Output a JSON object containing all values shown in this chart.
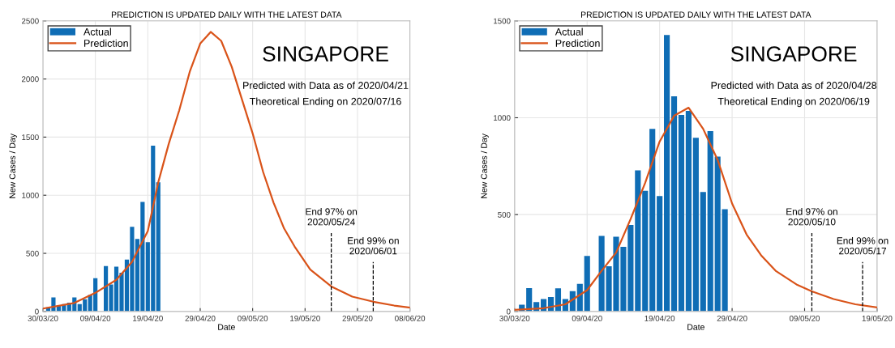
{
  "chart_data": [
    {
      "type": "bar",
      "title": "PREDICTION IS UPDATED DAILY WITH THE LATEST DATA",
      "xlabel": "Date",
      "ylabel": "New Cases / Day",
      "annotations": [
        "SINGAPORE",
        "Predicted with Data as of 2020/04/21",
        "Theoretical Ending on 2020/07/16"
      ],
      "xlim": [
        "2020-03-30",
        "2020-06-08"
      ],
      "xticks": [
        {
          "value": "2020-03-30",
          "label": "30/03/20"
        },
        {
          "value": "2020-04-09",
          "label": "09/04/20"
        },
        {
          "value": "2020-04-19",
          "label": "19/04/20"
        },
        {
          "value": "2020-04-29",
          "label": "29/04/20"
        },
        {
          "value": "2020-05-09",
          "label": "09/05/20"
        },
        {
          "value": "2020-05-19",
          "label": "19/05/20"
        },
        {
          "value": "2020-05-29",
          "label": "29/05/20"
        },
        {
          "value": "2020-06-08",
          "label": "08/06/20"
        }
      ],
      "ylim": [
        0,
        2500
      ],
      "yticks": [
        0,
        500,
        1000,
        1500,
        2000,
        2500
      ],
      "grid": true,
      "legend": "top left",
      "ref_lines": [
        {
          "axis": "x",
          "value": "2020-05-24",
          "label": "End 97% on\n2020/05/24",
          "color": "#000000",
          "line_style": "dashed"
        },
        {
          "axis": "x",
          "value": "2020-06-01",
          "label": "End 99% on\n2020/06/01",
          "color": "#000000",
          "line_style": "dashed"
        }
      ],
      "series": [
        {
          "name": "Actual",
          "color": "#0f6db5",
          "x": [
            "2020-03-31",
            "2020-04-01",
            "2020-04-02",
            "2020-04-03",
            "2020-04-04",
            "2020-04-05",
            "2020-04-06",
            "2020-04-07",
            "2020-04-08",
            "2020-04-09",
            "2020-04-10",
            "2020-04-11",
            "2020-04-12",
            "2020-04-13",
            "2020-04-14",
            "2020-04-15",
            "2020-04-16",
            "2020-04-17",
            "2020-04-18",
            "2020-04-19",
            "2020-04-20",
            "2020-04-21"
          ],
          "values": [
            35,
            121,
            48,
            64,
            75,
            120,
            64,
            105,
            142,
            287,
            null,
            390,
            233,
            386,
            334,
            446,
            728,
            623,
            942,
            596,
            1427,
            1111
          ]
        },
        {
          "name": "Prediction",
          "type": "line",
          "color": "#d95319",
          "x": [
            "2020-03-30",
            "2020-04-05",
            "2020-04-09",
            "2020-04-13",
            "2020-04-16",
            "2020-04-19",
            "2020-04-21",
            "2020-04-23",
            "2020-04-25",
            "2020-04-27",
            "2020-04-29",
            "2020-05-01",
            "2020-05-03",
            "2020-05-05",
            "2020-05-07",
            "2020-05-09",
            "2020-05-11",
            "2020-05-13",
            "2020-05-15",
            "2020-05-17",
            "2020-05-20",
            "2020-05-24",
            "2020-05-28",
            "2020-06-01",
            "2020-06-05",
            "2020-06-08"
          ],
          "values": [
            25,
            73,
            160,
            272,
            427,
            692,
            1112,
            1443,
            1731,
            2062,
            2305,
            2405,
            2328,
            2106,
            1819,
            1532,
            1200,
            935,
            714,
            559,
            360,
            215,
            128,
            84,
            51,
            33
          ]
        }
      ]
    },
    {
      "type": "bar",
      "title": "PREDICTION IS UPDATED DAILY WITH THE LATEST DATA",
      "xlabel": "Date",
      "ylabel": "New Cases / Day",
      "annotations": [
        "SINGAPORE",
        "Predicted with Data as of 2020/04/28",
        "Theoretical Ending on 2020/06/19"
      ],
      "xlim": [
        "2020-03-30",
        "2020-05-19"
      ],
      "xticks": [
        {
          "value": "2020-03-30",
          "label": "30/03/20"
        },
        {
          "value": "2020-04-09",
          "label": "09/04/20"
        },
        {
          "value": "2020-04-19",
          "label": "19/04/20"
        },
        {
          "value": "2020-04-29",
          "label": "29/04/20"
        },
        {
          "value": "2020-05-09",
          "label": "09/05/20"
        },
        {
          "value": "2020-05-19",
          "label": "19/05/20"
        }
      ],
      "ylim": [
        0,
        1500
      ],
      "yticks": [
        0,
        500,
        1000,
        1500
      ],
      "grid": true,
      "legend": "top left",
      "ref_lines": [
        {
          "axis": "x",
          "value": "2020-05-10",
          "label": "End 97% on\n2020/05/10",
          "color": "#000000",
          "line_style": "dashed"
        },
        {
          "axis": "x",
          "value": "2020-05-17",
          "label": "End 99% on\n2020/05/17",
          "color": "#000000",
          "line_style": "dashed"
        }
      ],
      "series": [
        {
          "name": "Actual",
          "color": "#0f6db5",
          "x": [
            "2020-03-31",
            "2020-04-01",
            "2020-04-02",
            "2020-04-03",
            "2020-04-04",
            "2020-04-05",
            "2020-04-06",
            "2020-04-07",
            "2020-04-08",
            "2020-04-09",
            "2020-04-10",
            "2020-04-11",
            "2020-04-12",
            "2020-04-13",
            "2020-04-14",
            "2020-04-15",
            "2020-04-16",
            "2020-04-17",
            "2020-04-18",
            "2020-04-19",
            "2020-04-20",
            "2020-04-21",
            "2020-04-22",
            "2020-04-23",
            "2020-04-24",
            "2020-04-25",
            "2020-04-26",
            "2020-04-27",
            "2020-04-28"
          ],
          "values": [
            35,
            121,
            48,
            64,
            75,
            120,
            64,
            105,
            142,
            287,
            null,
            390,
            233,
            386,
            334,
            446,
            728,
            623,
            942,
            596,
            1427,
            1111,
            1015,
            1035,
            897,
            617,
            931,
            799,
            528
          ]
        },
        {
          "name": "Prediction",
          "type": "line",
          "color": "#d95319",
          "x": [
            "2020-03-30",
            "2020-04-03",
            "2020-04-06",
            "2020-04-09",
            "2020-04-11",
            "2020-04-13",
            "2020-04-15",
            "2020-04-17",
            "2020-04-19",
            "2020-04-21",
            "2020-04-23",
            "2020-04-25",
            "2020-04-27",
            "2020-04-29",
            "2020-05-01",
            "2020-05-03",
            "2020-05-05",
            "2020-05-08",
            "2020-05-10",
            "2020-05-13",
            "2020-05-16",
            "2020-05-19"
          ],
          "values": [
            8,
            17,
            37,
            110,
            210,
            304,
            477,
            663,
            877,
            1010,
            1052,
            943,
            783,
            557,
            397,
            290,
            210,
            137,
            104,
            64,
            37,
            21
          ]
        }
      ]
    }
  ]
}
